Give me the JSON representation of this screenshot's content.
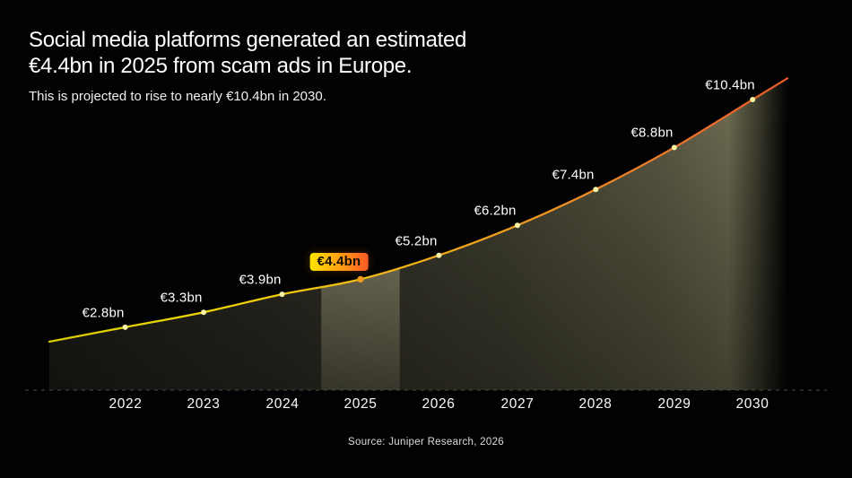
{
  "header": {
    "title_line1": "Social media platforms generated an estimated",
    "title_line2": "€4.4bn in 2025 from scam ads in Europe.",
    "subtitle": "This is projected to rise to nearly €10.4bn in 2030."
  },
  "footer": {
    "source": "Source: Juniper Research, 2026"
  },
  "chart_data": {
    "type": "area",
    "title": "Social media platforms generated an estimated €4.4bn in 2025 from scam ads in Europe.",
    "subtitle": "This is projected to rise to nearly €10.4bn in 2030.",
    "source": "Source: Juniper Research, 2026",
    "categories": [
      "2022",
      "2023",
      "2024",
      "2025",
      "2026",
      "2027",
      "2028",
      "2029",
      "2030"
    ],
    "values": [
      2.8,
      3.3,
      3.9,
      4.4,
      5.2,
      6.2,
      7.4,
      8.8,
      10.4
    ],
    "unit": "€bn",
    "point_labels": [
      "€2.8bn",
      "€3.3bn",
      "€3.9bn",
      "€4.4bn",
      "€5.2bn",
      "€6.2bn",
      "€7.4bn",
      "€8.8bn",
      "€10.4bn"
    ],
    "highlight_index": 3,
    "highlight_category": "2025",
    "highlight_label": "€4.4bn",
    "xlabel": "",
    "ylabel": "",
    "y_axis_visible": false,
    "grid": false,
    "legend": "none",
    "baseline_style": "dashed",
    "colors": {
      "background": "#020202",
      "line_start": "#E0CE00",
      "line_mid": "#F0A01E",
      "line_end": "#E65A2A",
      "dot": "#F9F3A2",
      "highlight_dot": "#F59E1C",
      "fill_dark": "#1F1E19",
      "fill_light": "#6F6D52",
      "badge_start": "#FFE400",
      "badge_end": "#FF5A26",
      "label_text": "#FFFFFF",
      "baseline": "#4A4A4A"
    }
  }
}
